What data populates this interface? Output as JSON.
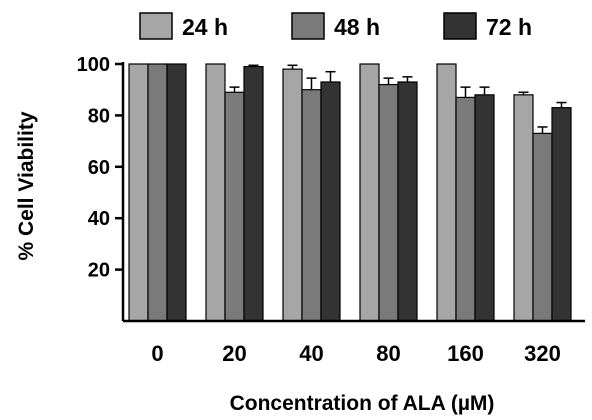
{
  "chart_data": {
    "type": "bar",
    "title": "",
    "xlabel": "Concentration of ALA (µM)",
    "ylabel": "% Cell Viability",
    "categories": [
      "0",
      "20",
      "40",
      "80",
      "160",
      "320"
    ],
    "ylim": [
      0,
      100
    ],
    "yticks": [
      20,
      40,
      60,
      80,
      100
    ],
    "grid": false,
    "legend": "top",
    "series": [
      {
        "name": "24 h",
        "color": "#a6a6a6",
        "values": [
          100,
          100,
          98,
          100,
          100,
          88
        ],
        "errors": [
          0,
          0,
          1.5,
          0,
          0,
          1
        ]
      },
      {
        "name": "48 h",
        "color": "#7a7a7a",
        "values": [
          100,
          89,
          90,
          92,
          87,
          73
        ],
        "errors": [
          0,
          2,
          4.5,
          2.5,
          4,
          2.5
        ]
      },
      {
        "name": "72 h",
        "color": "#333333",
        "values": [
          100,
          99,
          93,
          93,
          88,
          83
        ],
        "errors": [
          0,
          0.5,
          4,
          2,
          3,
          2
        ]
      }
    ]
  }
}
